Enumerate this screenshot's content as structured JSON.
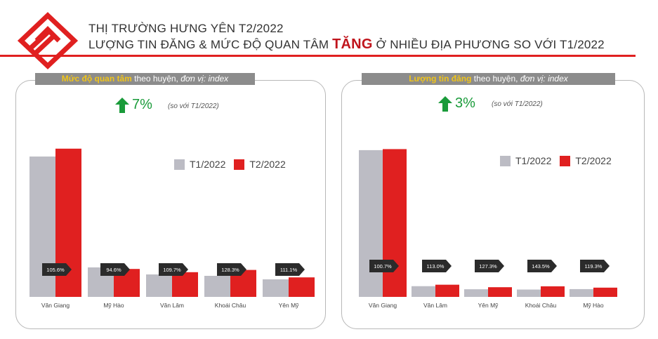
{
  "header": {
    "line1": "THỊ TRƯỜNG HƯNG YÊN T2/2022",
    "line2_before": "LƯỢNG TIN ĐĂNG & MỨC ĐỘ QUAN TÂM ",
    "line2_highlight": "TĂNG",
    "line2_after": " Ở NHIỀU ĐỊA PHƯƠNG SO VỚI T1/2022"
  },
  "colors": {
    "t1": "#bcbcc4",
    "t2": "#e02020",
    "accent": "#e02020",
    "growth": "#1a9b3a",
    "tag_bg": "#8c8c8c",
    "tag_emph": "#f0c419",
    "ratio_tag": "#2b2b2b"
  },
  "left_panel": {
    "tag_emph": "Mức độ quan tâm",
    "tag_mid": " theo huyện, ",
    "tag_italic": "đơn vị: index",
    "growth_value": "7%",
    "growth_note": "(so với T1/2022)",
    "legend": [
      "T1/2022",
      "T2/2022"
    ]
  },
  "right_panel": {
    "tag_emph": "Lượng tin đăng",
    "tag_mid": " theo huyện, ",
    "tag_italic": "đơn vị: index",
    "growth_value": "3%",
    "growth_note": "(so với T1/2022)",
    "legend": [
      "T1/2022",
      "T2/2022"
    ]
  },
  "chart_data": [
    {
      "type": "bar",
      "categories": [
        "Văn Giang",
        "Mỹ Hào",
        "Văn Lâm",
        "Khoái Châu",
        "Yên Mỹ"
      ],
      "series": [
        {
          "name": "T1/2022",
          "values": [
            100,
            21,
            16,
            15,
            12.5
          ]
        },
        {
          "name": "T2/2022",
          "values": [
            105.6,
            19.9,
            17.6,
            19.2,
            13.9
          ]
        }
      ],
      "ratio_labels": [
        "105.6%",
        "94.6%",
        "109.7%",
        "128.3%",
        "111.1%"
      ],
      "ylim": [
        0,
        110
      ],
      "legend_position": "top-right"
    },
    {
      "type": "bar",
      "categories": [
        "Văn Giang",
        "Văn Lâm",
        "Yên Mỹ",
        "Khoái Châu",
        "Mỹ Hào"
      ],
      "series": [
        {
          "name": "T1/2022",
          "values": [
            100,
            7.3,
            5.2,
            5.0,
            5.3
          ]
        },
        {
          "name": "T2/2022",
          "values": [
            100.7,
            8.3,
            6.6,
            7.2,
            6.3
          ]
        }
      ],
      "ratio_labels": [
        "100.7%",
        "113.0%",
        "127.3%",
        "143.5%",
        "119.3%"
      ],
      "ylim": [
        0,
        110
      ],
      "legend_position": "top-right"
    }
  ]
}
